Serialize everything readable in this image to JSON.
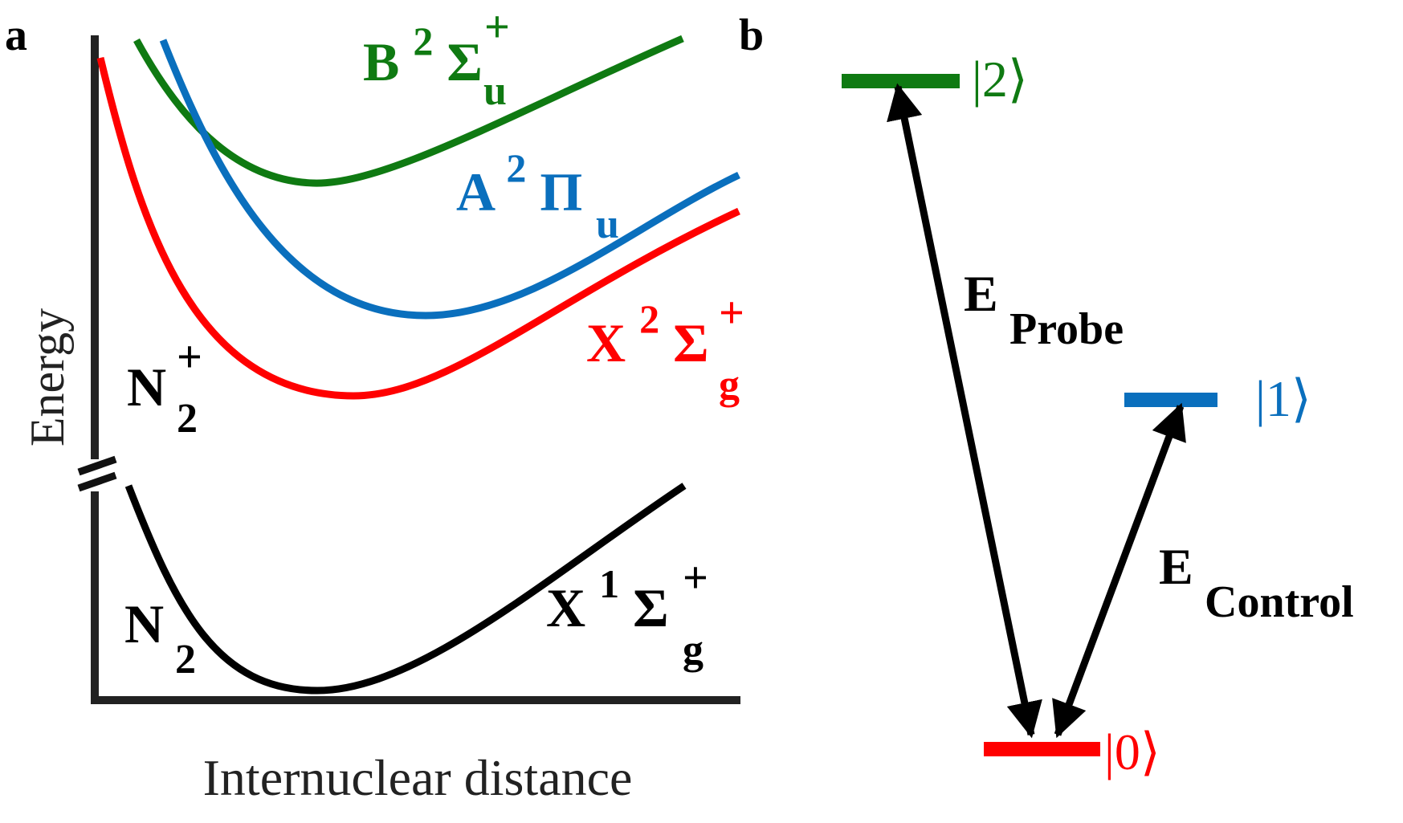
{
  "panel_a": {
    "label": "a",
    "y_axis_label": "Energy",
    "x_axis_label": "Internuclear distance",
    "ion_label": {
      "main": "N",
      "sub": "2",
      "sup": "+"
    },
    "neutral_label": {
      "main": "N",
      "sub": "2"
    },
    "states": {
      "B": {
        "main": "B",
        "mult": "2",
        "sym": "Σ",
        "sup": "+",
        "sub": "u",
        "color": "#0f7a12"
      },
      "A": {
        "main": "A",
        "mult": "2",
        "sym": "Π",
        "sup": "",
        "sub": "u",
        "color": "#0a6fbd"
      },
      "Xion": {
        "main": "X",
        "mult": "2",
        "sym": "Σ",
        "sup": "+",
        "sub": "g",
        "color": "#ff0000"
      },
      "Xneutral": {
        "main": "X",
        "mult": "1",
        "sym": "Σ",
        "sup": "+",
        "sub": "g",
        "color": "#000000"
      }
    }
  },
  "panel_b": {
    "label": "b",
    "levels": {
      "level2": {
        "text": "|2⟩",
        "color": "#0f7a12"
      },
      "level1": {
        "text": "|1⟩",
        "color": "#0a6fbd"
      },
      "level0": {
        "text": "|0⟩",
        "color": "#ff0000"
      }
    },
    "probe": {
      "main": "E",
      "sub": "Probe"
    },
    "control": {
      "main": "E",
      "sub": "Control"
    }
  }
}
